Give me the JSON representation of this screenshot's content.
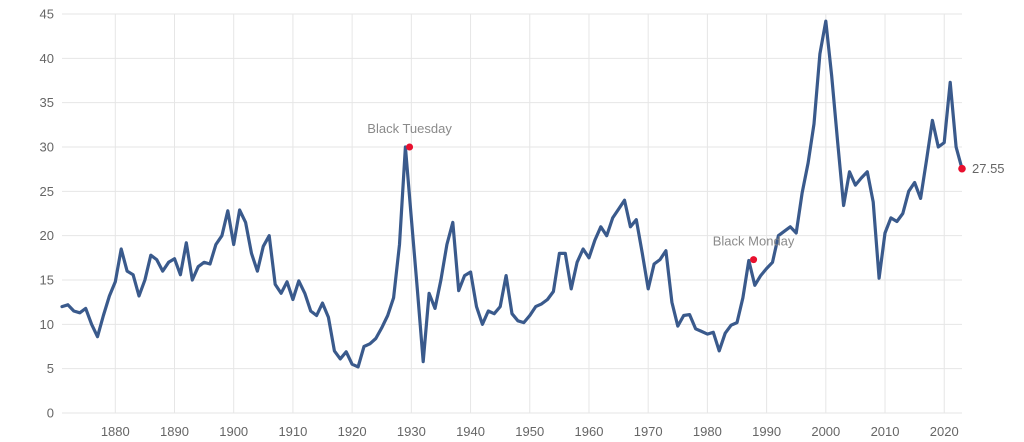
{
  "chart_data": {
    "type": "line",
    "title": "",
    "xlabel": "",
    "ylabel": "",
    "xlim": [
      1871,
      2023
    ],
    "ylim": [
      0,
      45
    ],
    "grid": true,
    "x_ticks": [
      1880,
      1890,
      1900,
      1910,
      1920,
      1930,
      1940,
      1950,
      1960,
      1970,
      1980,
      1990,
      2000,
      2010,
      2020
    ],
    "y_ticks": [
      0,
      5,
      10,
      15,
      20,
      25,
      30,
      35,
      40,
      45
    ],
    "colors": {
      "line": "#3a5a8c",
      "marker": "#e8102e",
      "grid": "#e6e6e6",
      "annotation": "#8a8a8a"
    },
    "series": [
      {
        "x": [
          1871,
          1872,
          1873,
          1874,
          1875,
          1876,
          1877,
          1878,
          1879,
          1880,
          1881,
          1882,
          1883,
          1884,
          1885,
          1886,
          1887,
          1888,
          1889,
          1890,
          1891,
          1892,
          1893,
          1894,
          1895,
          1896,
          1897,
          1898,
          1899,
          1900,
          1901,
          1902,
          1903,
          1904,
          1905,
          1906,
          1907,
          1908,
          1909,
          1910,
          1911,
          1912,
          1913,
          1914,
          1915,
          1916,
          1917,
          1918,
          1919,
          1920,
          1921,
          1922,
          1923,
          1924,
          1925,
          1926,
          1927,
          1928,
          1929,
          1930,
          1931,
          1932,
          1933,
          1934,
          1935,
          1936,
          1937,
          1938,
          1939,
          1940,
          1941,
          1942,
          1943,
          1944,
          1945,
          1946,
          1947,
          1948,
          1949,
          1950,
          1951,
          1952,
          1953,
          1954,
          1955,
          1956,
          1957,
          1958,
          1959,
          1960,
          1961,
          1962,
          1963,
          1964,
          1965,
          1966,
          1967,
          1968,
          1969,
          1970,
          1971,
          1972,
          1973,
          1974,
          1975,
          1976,
          1977,
          1978,
          1979,
          1980,
          1981,
          1982,
          1983,
          1984,
          1985,
          1986,
          1987,
          1988,
          1989,
          1990,
          1991,
          1992,
          1993,
          1994,
          1995,
          1996,
          1997,
          1998,
          1999,
          2000,
          2001,
          2002,
          2003,
          2004,
          2005,
          2006,
          2007,
          2008,
          2009,
          2010,
          2011,
          2012,
          2013,
          2014,
          2015,
          2016,
          2017,
          2018,
          2019,
          2020,
          2021,
          2022,
          2023
        ],
        "values": [
          12.0,
          12.2,
          11.5,
          11.3,
          11.8,
          10.0,
          8.6,
          11.0,
          13.2,
          14.8,
          18.5,
          16.0,
          15.6,
          13.2,
          15.0,
          17.8,
          17.3,
          16.0,
          17.0,
          17.4,
          15.6,
          19.2,
          15.0,
          16.5,
          17.0,
          16.8,
          19.0,
          20.0,
          22.8,
          19.0,
          22.9,
          21.5,
          18.0,
          16.0,
          18.8,
          20.0,
          14.5,
          13.5,
          14.8,
          12.8,
          14.9,
          13.5,
          11.5,
          11.0,
          12.4,
          10.8,
          7.0,
          6.1,
          6.9,
          5.5,
          5.2,
          7.5,
          7.8,
          8.4,
          9.6,
          11.0,
          13.0,
          19.0,
          30.0,
          22.0,
          14.0,
          5.8,
          13.5,
          11.8,
          15.0,
          19.0,
          21.5,
          13.8,
          15.5,
          15.9,
          12.0,
          10.0,
          11.5,
          11.2,
          12.0,
          15.5,
          11.2,
          10.4,
          10.2,
          11.0,
          12.0,
          12.3,
          12.8,
          13.7,
          18.0,
          18.0,
          14.0,
          17.0,
          18.5,
          17.5,
          19.5,
          21.0,
          20.0,
          22.0,
          23.0,
          24.0,
          21.0,
          21.8,
          18.0,
          14.0,
          16.8,
          17.3,
          18.3,
          12.5,
          9.8,
          11.0,
          11.1,
          9.5,
          9.2,
          8.9,
          9.1,
          7.0,
          9.0,
          9.9,
          10.2,
          13.0,
          17.2,
          14.4,
          15.5,
          16.3,
          17.0,
          20.0,
          20.5,
          21.0,
          20.3,
          24.8,
          28.2,
          32.6,
          40.5,
          44.2,
          38.0,
          30.5,
          23.4,
          27.2,
          25.7,
          26.5,
          27.2,
          23.8,
          15.2,
          20.3,
          22.0,
          21.6,
          22.5,
          25.0,
          26.0,
          24.2,
          28.5,
          33.0,
          30.0,
          30.5,
          37.3,
          30.0,
          27.55
        ]
      }
    ],
    "annotations": [
      {
        "label": "Black Tuesday",
        "x": 1929.7,
        "y": 30.0
      },
      {
        "label": "Black Monday",
        "x": 1987.8,
        "y": 17.3
      }
    ],
    "end_label": {
      "label": "27.55",
      "x": 2023,
      "y": 27.55
    }
  }
}
